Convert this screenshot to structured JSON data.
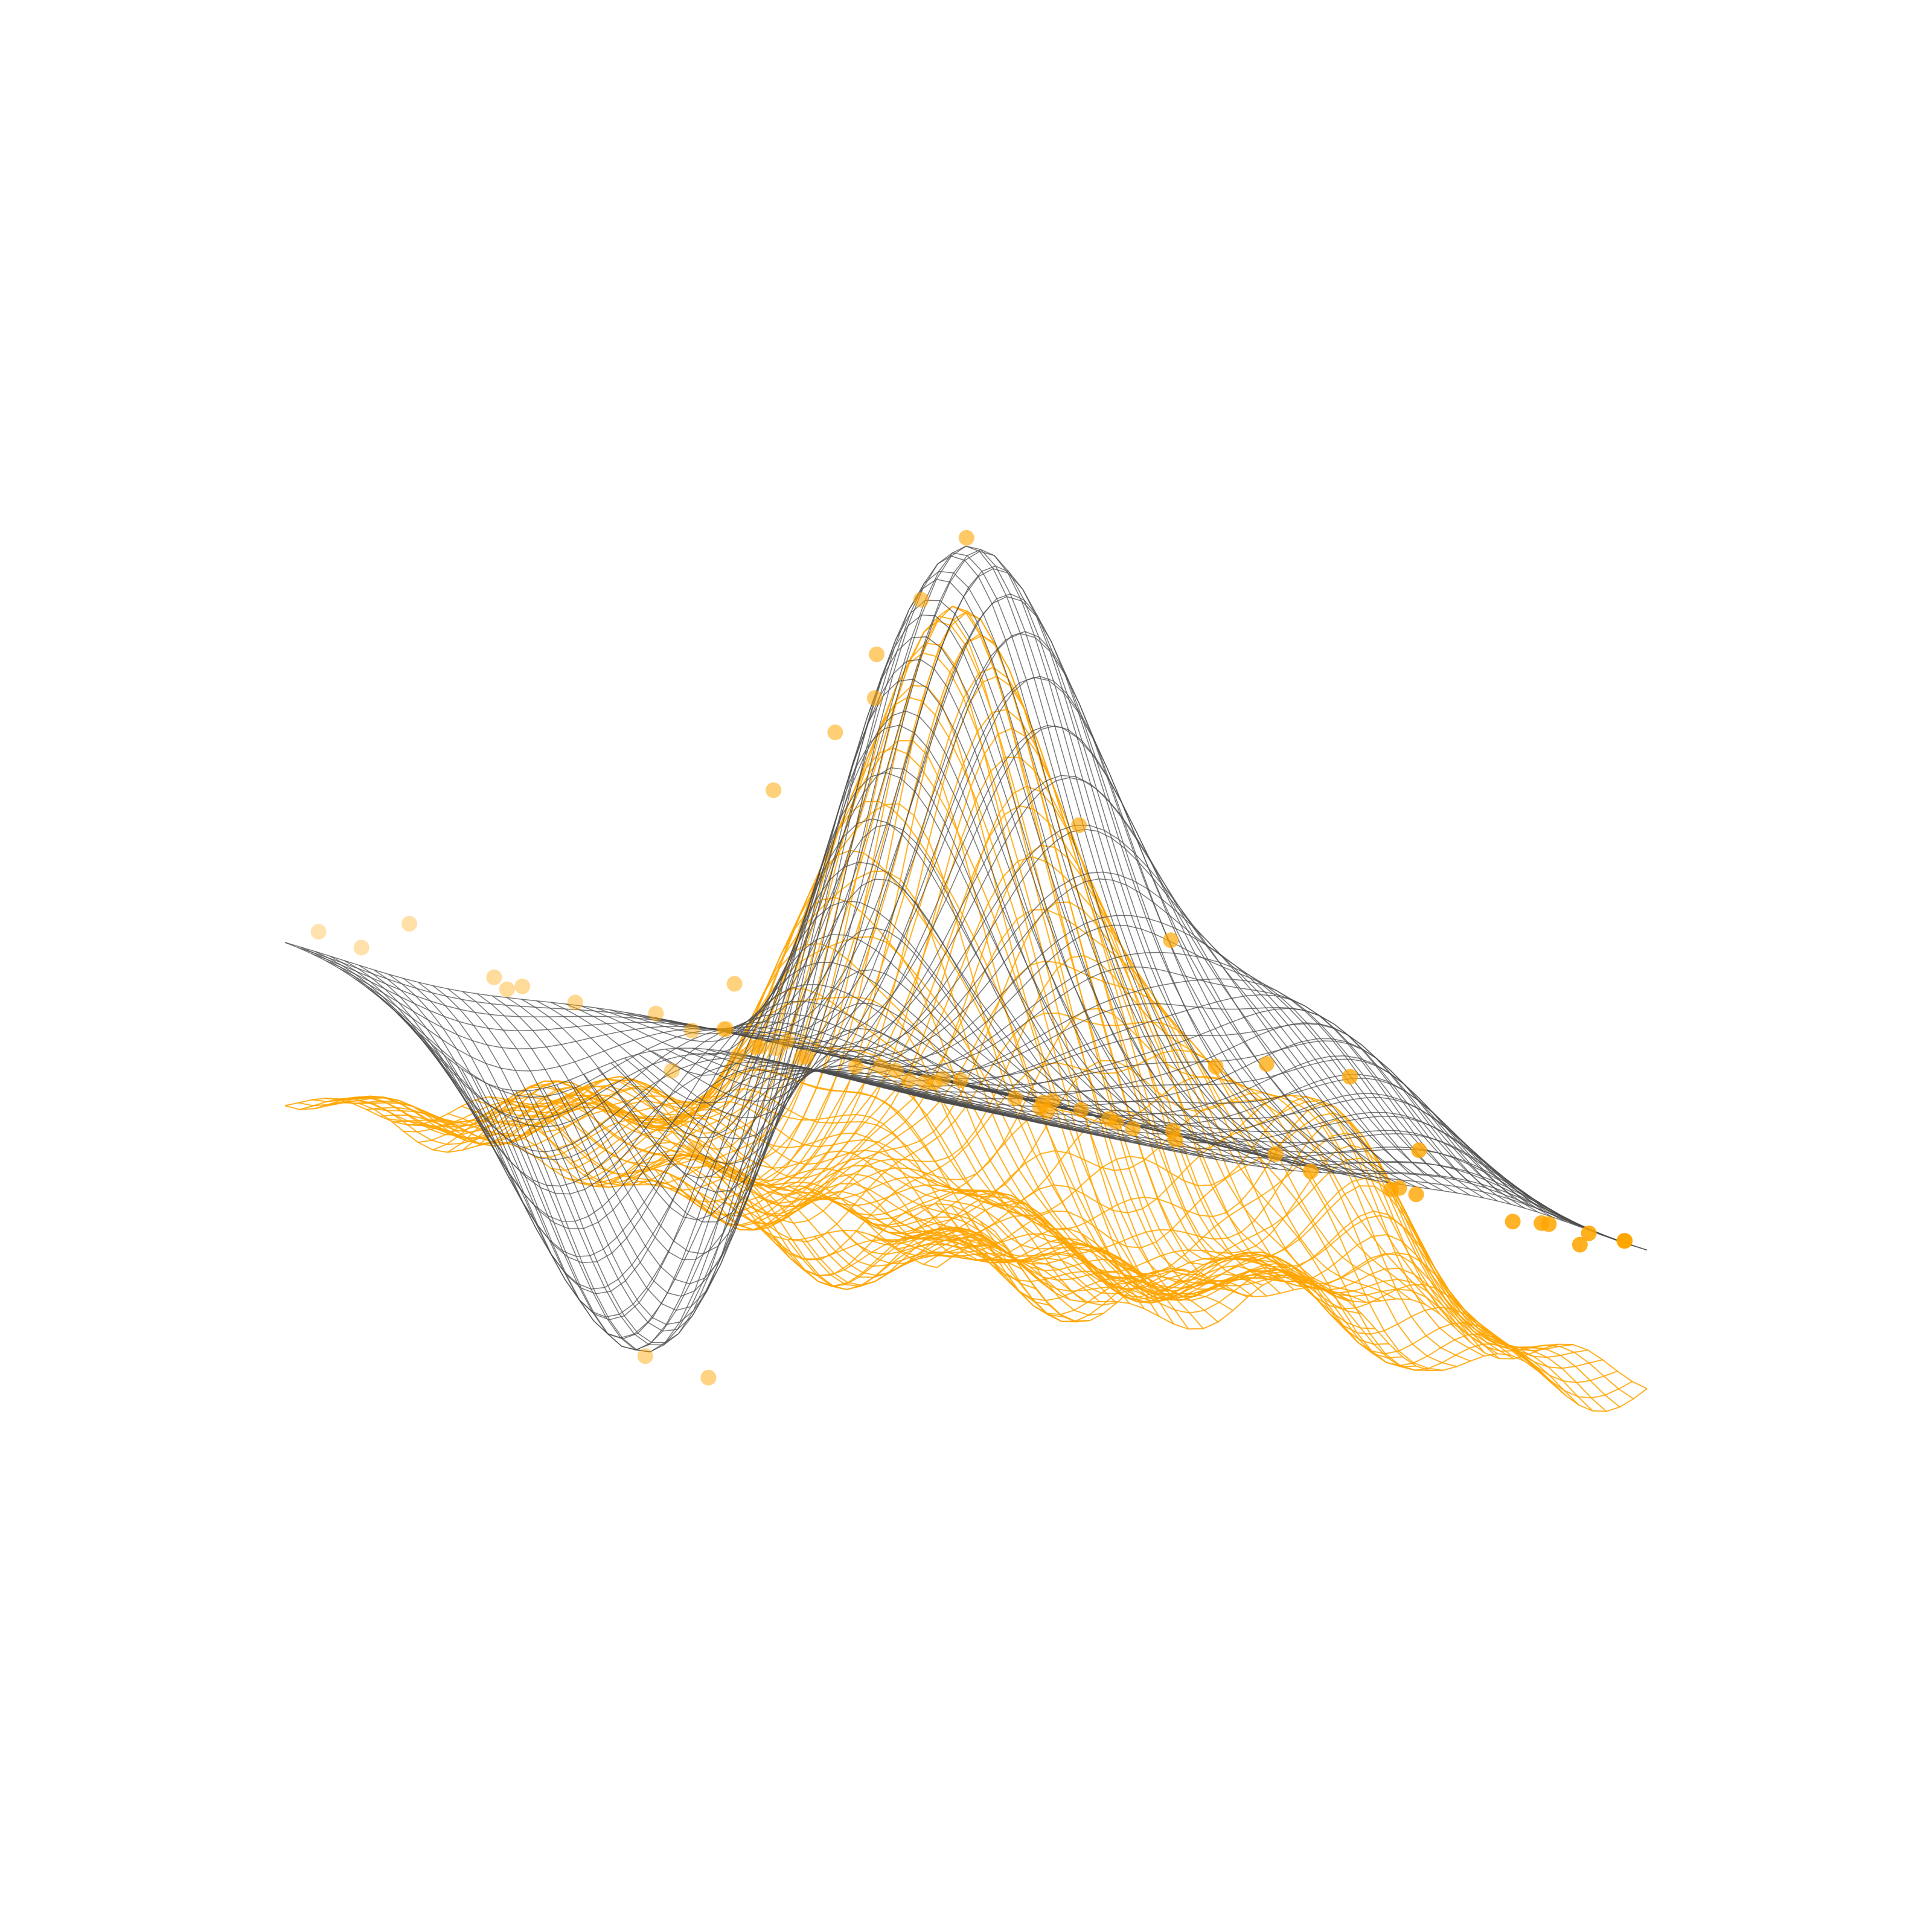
{
  "chart_data": {
    "type": "surface3d",
    "title": "",
    "xlabel": "",
    "ylabel": "",
    "zlabel": "",
    "axes_visible": false,
    "grid": false,
    "legend": "none",
    "x_range": [
      -3,
      3
    ],
    "y_range": [
      -3,
      3
    ],
    "z_range": [
      -2.6,
      4.2
    ],
    "grid_resolution": 48,
    "surfaces": [
      {
        "id": "fitted-surface",
        "style": "wireframe",
        "color": "#4a4a4a",
        "z_offset": 0,
        "noise": 0,
        "components": [
          {
            "amp": 3.9,
            "x0": 0.0,
            "y0": 0.0,
            "sx": 0.85,
            "sy": 0.85
          },
          {
            "amp": 1.0,
            "x0": 1.4,
            "y0": -1.7,
            "sx": 0.75,
            "sy": 0.75
          },
          {
            "amp": -2.5,
            "x0": -1.7,
            "y0": 1.0,
            "sx": 0.8,
            "sy": 0.8
          }
        ]
      },
      {
        "id": "noisy-surface",
        "style": "wireframe",
        "color": "#ffa500",
        "z_offset": -1.05,
        "noise": 0.22,
        "components": [
          {
            "amp": 4.1,
            "x0": 0.0,
            "y0": 0.0,
            "sx": 0.85,
            "sy": 0.85
          },
          {
            "amp": 1.1,
            "x0": 1.4,
            "y0": -1.7,
            "sx": 0.75,
            "sy": 0.75
          },
          {
            "amp": 0.4,
            "x0": -2.2,
            "y0": 1.4,
            "sx": 0.6,
            "sy": 0.6
          }
        ]
      }
    ],
    "scatter": {
      "color": "#ffa500",
      "points": [
        [
          0.05,
          0.05,
          3.85
        ],
        [
          -0.15,
          0.25,
          3.35
        ],
        [
          -0.45,
          0.35,
          2.6
        ],
        [
          -0.25,
          0.55,
          2.9
        ],
        [
          -0.6,
          0.55,
          2.3
        ],
        [
          -0.8,
          0.9,
          1.8
        ],
        [
          0.45,
          -0.55,
          2.05
        ],
        [
          0.95,
          -0.85,
          1.4
        ],
        [
          1.3,
          -1.35,
          0.7
        ],
        [
          1.1,
          -1.1,
          0.6
        ],
        [
          1.5,
          -1.9,
          0.75
        ],
        [
          1.9,
          -2.1,
          0.35
        ],
        [
          2.1,
          -1.7,
          0.05
        ],
        [
          -0.9,
          1.15,
          0.4
        ],
        [
          -1.2,
          1.4,
          -0.3
        ],
        [
          -0.55,
          1.5,
          -0.1
        ],
        [
          -1.7,
          1.1,
          -2.3
        ],
        [
          -1.35,
          0.9,
          -2.35
        ],
        [
          -1.1,
          1.3,
          -0.8
        ],
        [
          -2.5,
          2.4,
          0.3
        ],
        [
          -2.9,
          2.8,
          0.1
        ],
        [
          -2.4,
          2.95,
          0.05
        ],
        [
          -1.6,
          2.6,
          0.05
        ],
        [
          -1.95,
          2.1,
          0.0
        ],
        [
          -2.05,
          1.85,
          0.05
        ],
        [
          2.8,
          -2.6,
          -0.05
        ],
        [
          2.6,
          -2.2,
          0.0
        ],
        [
          2.9,
          -2.9,
          0.05
        ],
        [
          -2.2,
          -0.5,
          0.05
        ],
        [
          -2.5,
          -0.2,
          0.05
        ],
        [
          -1.9,
          -0.6,
          0.05
        ],
        [
          -1.7,
          -0.1,
          0.05
        ],
        [
          -2.6,
          -0.9,
          0.05
        ],
        [
          -2.4,
          -1.1,
          0.05
        ],
        [
          -1.4,
          -1.0,
          0.05
        ],
        [
          -0.6,
          -1.4,
          0.05
        ],
        [
          0.3,
          -1.6,
          0.05
        ],
        [
          0.8,
          -2.3,
          0.05
        ],
        [
          1.25,
          -2.55,
          0.05
        ],
        [
          1.6,
          -2.4,
          0.05
        ],
        [
          2.2,
          -2.9,
          0.05
        ],
        [
          2.6,
          -2.9,
          0.05
        ],
        [
          2.95,
          -2.85,
          0.05
        ],
        [
          2.4,
          -2.75,
          0.05
        ],
        [
          0.05,
          0.7,
          0.05
        ],
        [
          0.6,
          0.2,
          0.05
        ],
        [
          1.2,
          0.6,
          0.05
        ],
        [
          1.0,
          1.3,
          0.05
        ],
        [
          1.8,
          0.9,
          0.05
        ],
        [
          2.3,
          0.6,
          0.05
        ],
        [
          2.2,
          1.6,
          0.05
        ],
        [
          1.7,
          1.9,
          0.05
        ],
        [
          -0.3,
          1.9,
          0.05
        ],
        [
          -0.1,
          2.1,
          0.05
        ],
        [
          -0.6,
          2.2,
          0.05
        ],
        [
          0.6,
          2.3,
          0.05
        ],
        [
          2.8,
          0.2,
          0.05
        ],
        [
          -0.9,
          -0.6,
          0.05
        ],
        [
          -0.2,
          -0.9,
          0.05
        ],
        [
          -1.3,
          -0.4,
          0.05
        ],
        [
          0.4,
          -1.1,
          0.05
        ],
        [
          0.9,
          -0.4,
          0.05
        ],
        [
          1.3,
          0.1,
          0.05
        ],
        [
          -2.75,
          0.6,
          0.05
        ],
        [
          0.2,
          1.0,
          0.05
        ],
        [
          -0.45,
          -0.2,
          0.05
        ]
      ]
    }
  }
}
